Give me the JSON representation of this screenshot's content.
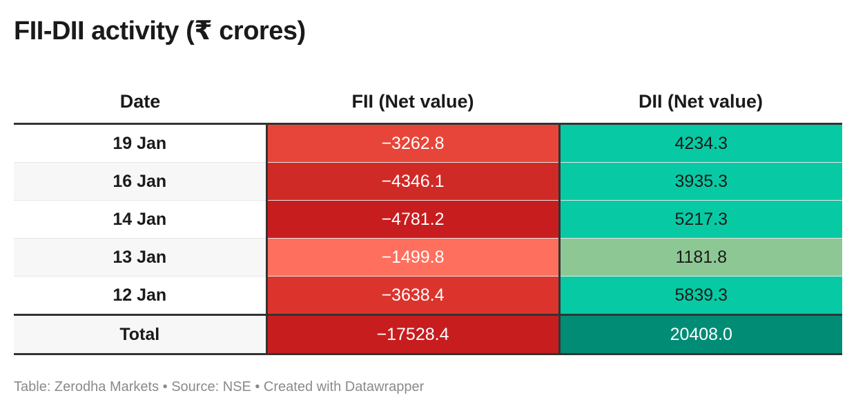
{
  "title": "FII-DII activity (₹ crores)",
  "footer": "Table: Zerodha Markets • Source: NSE • Created with Datawrapper",
  "chart_data": {
    "type": "table",
    "title": "FII-DII activity (₹ crores)",
    "columns": [
      "Date",
      "FII (Net value)",
      "DII (Net value)"
    ],
    "rows": [
      {
        "date": "19 Jan",
        "fii": "−3262.8",
        "dii": "4234.3",
        "fii_color": "#e8453a",
        "dii_color": "#07caa4"
      },
      {
        "date": "16 Jan",
        "fii": "−4346.1",
        "dii": "3935.3",
        "fii_color": "#d02a26",
        "dii_color": "#07caa4"
      },
      {
        "date": "14 Jan",
        "fii": "−4781.2",
        "dii": "5217.3",
        "fii_color": "#c71d1f",
        "dii_color": "#07caa4"
      },
      {
        "date": "13 Jan",
        "fii": "−1499.8",
        "dii": "1181.8",
        "fii_color": "#ff6f5e",
        "dii_color": "#8dc894"
      },
      {
        "date": "12 Jan",
        "fii": "−3638.4",
        "dii": "5839.3",
        "fii_color": "#dc342d",
        "dii_color": "#07caa4"
      }
    ],
    "total": {
      "date": "Total",
      "fii": "−17528.4",
      "dii": "20408.0",
      "fii_color": "#c71d1f",
      "dii_color": "#008c75"
    }
  }
}
